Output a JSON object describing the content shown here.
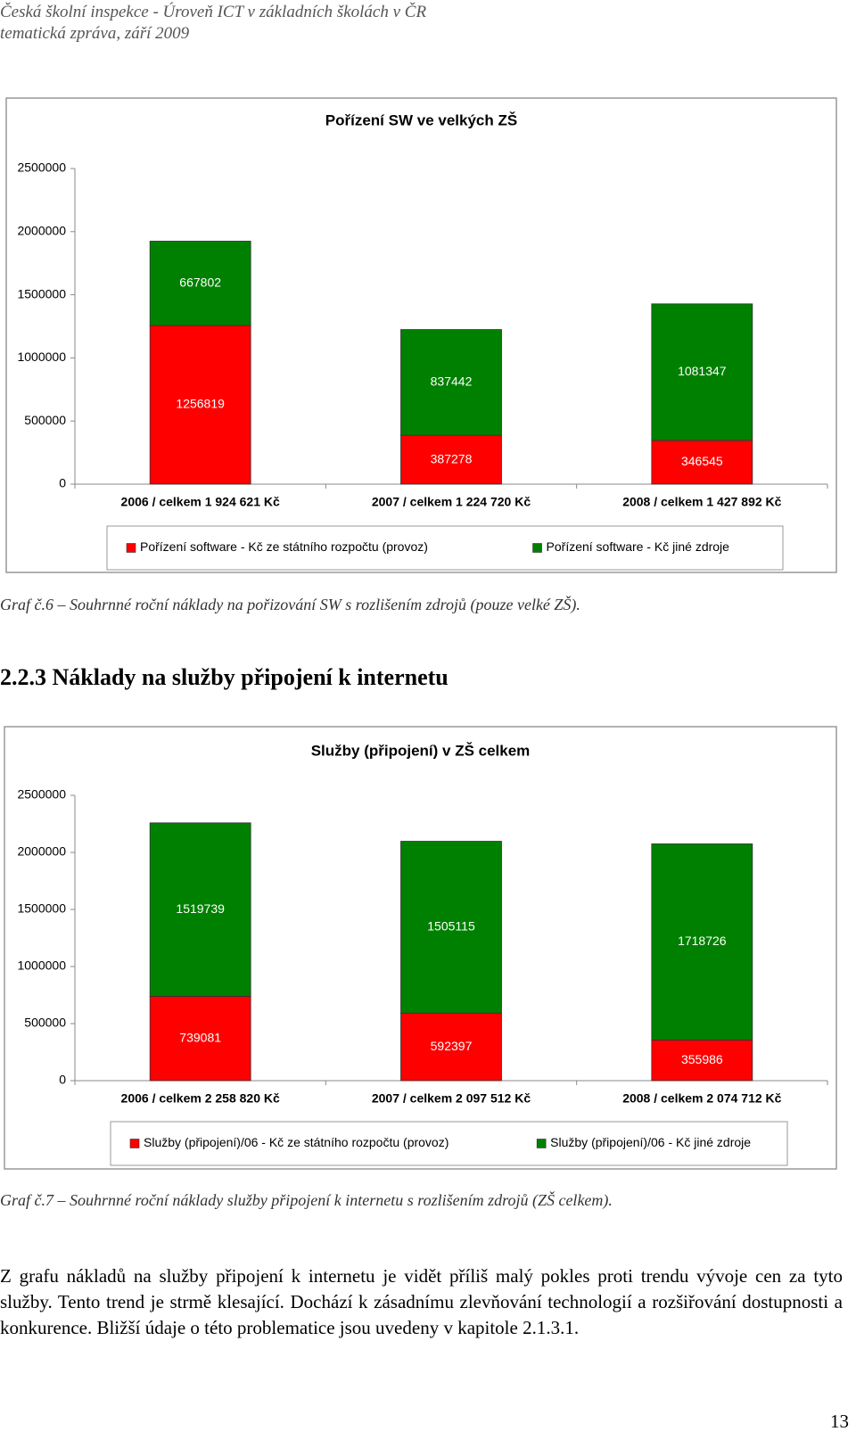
{
  "header": {
    "line1": "Česká školní inspekce - Úroveň ICT v základních školách v ČR",
    "line2": "tematická zpráva, září 2009"
  },
  "chart_data": [
    {
      "type": "stacked-bar",
      "title": "Pořízení SW ve velkých ZŠ",
      "categories": [
        "2006 / celkem 1 924 621 Kč",
        "2007 / celkem 1 224 720 Kč",
        "2008 / celkem 1 427 892 Kč"
      ],
      "series": [
        {
          "name": "Pořízení software - Kč ze státního rozpočtu (provoz)",
          "color": "#ff0000",
          "values": [
            1256819,
            387278,
            346545
          ]
        },
        {
          "name": "Pořízení software - Kč jiné zdroje",
          "color": "#008000",
          "values": [
            667802,
            837442,
            1081347
          ]
        }
      ],
      "ylim": [
        0,
        2500000
      ],
      "yticks": [
        0,
        500000,
        1000000,
        1500000,
        2000000,
        2500000
      ],
      "grid": false,
      "legend": "bottom"
    },
    {
      "type": "stacked-bar",
      "title": "Služby (připojení) v ZŠ celkem",
      "categories": [
        "2006 / celkem 2 258 820 Kč",
        "2007 / celkem 2 097 512 Kč",
        "2008 / celkem 2 074 712 Kč"
      ],
      "series": [
        {
          "name": "Služby (připojení)/06 - Kč ze státního rozpočtu (provoz)",
          "color": "#ff0000",
          "values": [
            739081,
            592397,
            355986
          ]
        },
        {
          "name": "Služby (připojení)/06 - Kč jiné zdroje",
          "color": "#008000",
          "values": [
            1519739,
            1505115,
            1718726
          ]
        }
      ],
      "ylim": [
        0,
        2500000
      ],
      "yticks": [
        0,
        500000,
        1000000,
        1500000,
        2000000,
        2500000
      ],
      "grid": false,
      "legend": "bottom"
    }
  ],
  "caption1": "Graf č.6 – Souhrnné roční náklady na pořizování SW s rozlišením zdrojů (pouze velké ZŠ).",
  "heading": "2.2.3  Náklady na služby připojení k internetu",
  "caption2": "Graf č.7 – Souhrnné roční náklady služby připojení k internetu s rozlišením zdrojů (ZŠ celkem).",
  "paragraph": "Z grafu nákladů na služby připojení k internetu je vidět příliš malý pokles proti trendu vývoje cen za tyto služby. Tento trend je strmě klesající. Dochází k zásadnímu zlevňování technologií a rozšiřování dostupnosti a konkurence. Bližší údaje o této problematice jsou uvedeny v kapitole 2.1.3.1.",
  "page_number": "13"
}
